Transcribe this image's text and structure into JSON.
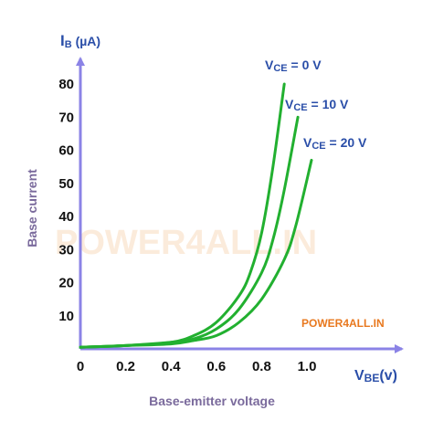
{
  "chart_data": {
    "type": "line",
    "ylabel_symbol": "I",
    "ylabel_sub": "B",
    "ylabel_unit": " (µA)",
    "xlabel_symbol": "V",
    "xlabel_sub": "BE",
    "xlabel_unit": "(v)",
    "ylabel_side": "Base current",
    "xlabel_bottom": "Base-emitter voltage",
    "xlim": [
      0,
      1.1
    ],
    "ylim": [
      0,
      85
    ],
    "x_ticks": [
      "0",
      "0.2",
      "0.4",
      "0.6",
      "0.8",
      "1.0"
    ],
    "y_ticks": [
      "10",
      "20",
      "30",
      "40",
      "50",
      "60",
      "70",
      "80"
    ],
    "series": [
      {
        "name_main": "V",
        "name_sub": "CE",
        "name_rest": " = 0 V",
        "x": [
          0,
          0.2,
          0.4,
          0.5,
          0.6,
          0.7,
          0.75,
          0.8,
          0.85,
          0.9
        ],
        "y": [
          0.5,
          1,
          2,
          4,
          8,
          16,
          23,
          35,
          55,
          80
        ]
      },
      {
        "name_main": "V",
        "name_sub": "CE",
        "name_rest": " = 10 V",
        "x": [
          0,
          0.2,
          0.4,
          0.5,
          0.6,
          0.7,
          0.8,
          0.85,
          0.9,
          0.96
        ],
        "y": [
          0.5,
          1,
          2,
          3,
          6,
          12,
          23,
          33,
          48,
          70
        ]
      },
      {
        "name_main": "V",
        "name_sub": "CE",
        "name_rest": " = 20 V",
        "x": [
          0,
          0.2,
          0.4,
          0.5,
          0.6,
          0.7,
          0.8,
          0.9,
          0.95,
          1.02
        ],
        "y": [
          0.5,
          1,
          1.5,
          2.5,
          4,
          8,
          15,
          27,
          37,
          57
        ]
      }
    ],
    "grid": false,
    "colors": {
      "curve": "#22b030",
      "axis": "#8b83e6",
      "label": "#2a4ea8",
      "title": "#7a6a9c"
    }
  },
  "watermark": {
    "big": "POWER4ALL.IN",
    "small": "POWER4ALL.IN"
  }
}
